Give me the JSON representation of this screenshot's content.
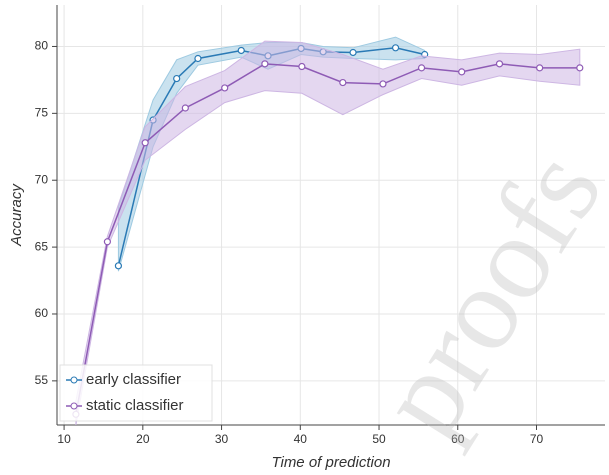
{
  "chart_data": {
    "type": "line",
    "xlabel": "Time of prediction",
    "ylabel": "Accuracy",
    "xlim": [
      9.1,
      78.7
    ],
    "ylim": [
      51.7,
      83.1
    ],
    "xticks": [
      10,
      20,
      30,
      40,
      50,
      60,
      70
    ],
    "yticks": [
      55,
      60,
      65,
      70,
      75,
      80
    ],
    "grid": true,
    "legend": "lower left",
    "watermark": "proofs",
    "series": [
      {
        "name": "early classifier",
        "color": "#2a7ab5",
        "band_color": "#9ecae1",
        "x": [
          16.9,
          21.3,
          24.3,
          27.0,
          32.5,
          35.9,
          40.1,
          42.9,
          46.7,
          52.1,
          55.8
        ],
        "values": [
          63.6,
          74.5,
          77.6,
          79.1,
          79.7,
          79.3,
          79.85,
          79.6,
          79.55,
          79.9,
          79.4
        ],
        "lower": [
          63.2,
          72.5,
          76.5,
          78.6,
          79.2,
          78.3,
          79.4,
          79.2,
          79.1,
          79.0,
          79.1
        ],
        "upper": [
          68.0,
          76.0,
          79.0,
          79.6,
          80.1,
          80.3,
          80.3,
          80.0,
          79.9,
          80.7,
          79.7
        ]
      },
      {
        "name": "static classifier",
        "color": "#8e5bb5",
        "band_color": "#cdb6e3",
        "x": [
          11.5,
          15.5,
          20.3,
          25.4,
          30.4,
          35.5,
          40.2,
          45.4,
          50.5,
          55.4,
          60.5,
          65.3,
          70.4,
          75.5
        ],
        "values": [
          52.5,
          65.4,
          72.8,
          75.4,
          76.9,
          78.7,
          78.5,
          77.3,
          77.2,
          78.4,
          78.1,
          78.7,
          78.4,
          78.4
        ],
        "lower": [
          51.7,
          65.0,
          71.5,
          73.8,
          75.8,
          76.7,
          76.5,
          74.9,
          76.4,
          77.6,
          77.1,
          77.8,
          77.4,
          77.1
        ],
        "upper": [
          53.5,
          65.8,
          74.0,
          77.0,
          78.2,
          80.4,
          80.3,
          79.4,
          78.3,
          79.3,
          79.0,
          79.5,
          79.4,
          79.8
        ]
      }
    ]
  }
}
